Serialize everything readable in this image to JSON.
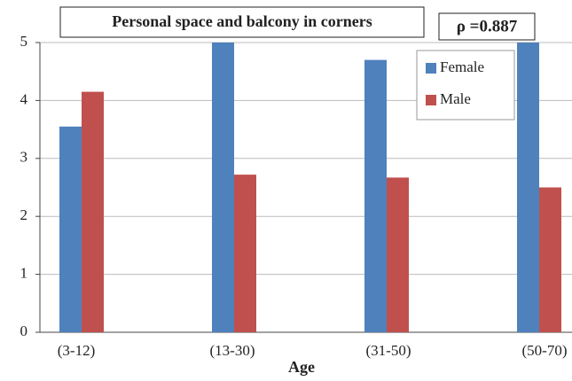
{
  "chart_data": {
    "type": "bar",
    "title": "Personal space and balcony in corners",
    "annotation": "ρ =0.887",
    "xlabel": "Age",
    "categories": [
      "(3-12)",
      "(13-30)",
      "(31-50)",
      "(50-70)"
    ],
    "series": [
      {
        "name": "Female",
        "color": "#4f81bd",
        "values": [
          3.55,
          5,
          4.7,
          5
        ]
      },
      {
        "name": "Male",
        "color": "#c0504d",
        "values": [
          4.15,
          2.72,
          2.67,
          2.5
        ]
      }
    ],
    "ylim": [
      0,
      5
    ],
    "yticks": [
      0,
      1,
      2,
      3,
      4,
      5
    ],
    "grid": true,
    "legend": "top-right"
  }
}
